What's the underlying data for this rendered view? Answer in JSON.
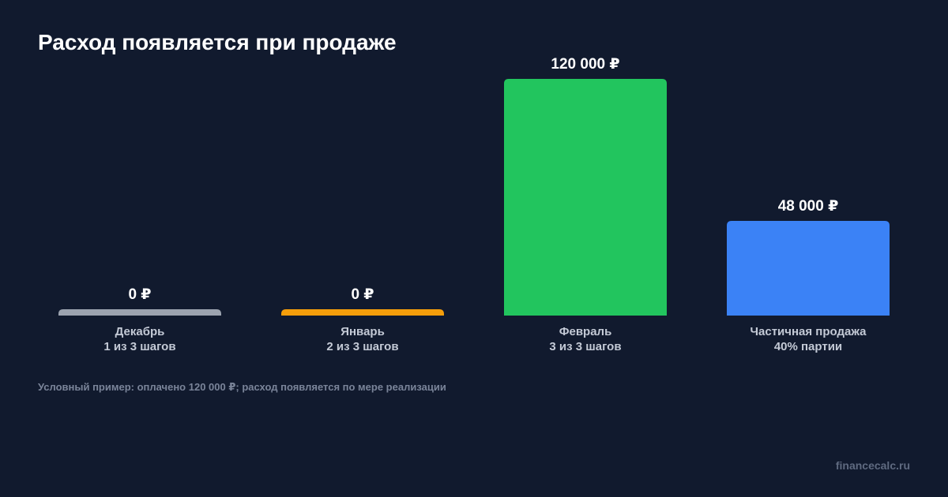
{
  "title": "Расход появляется при продаже",
  "note": "Условный пример: оплачено 120 000 ₽; расход появляется по мере реализации",
  "source": "financecalc.ru",
  "colors": {
    "background": "#111a2e",
    "december": "#9ca3af",
    "january": "#f59e0b",
    "february": "#22c55e",
    "partial": "#3b82f6"
  },
  "chart_data": {
    "type": "bar",
    "title": "Расход появляется при продаже",
    "ylim": [
      0,
      120000
    ],
    "grid": false,
    "categories": [
      "Декабрь\n1 из 3 шагов",
      "Январь\n2 из 3 шагов",
      "Февраль\n3 из 3 шагов",
      "Частичная продажа\n40% партии"
    ],
    "bars": [
      {
        "label_line1": "Декабрь",
        "label_line2": "1 из 3 шагов",
        "value": 0,
        "value_label": "0 ₽",
        "color": "#9ca3af"
      },
      {
        "label_line1": "Январь",
        "label_line2": "2 из 3 шагов",
        "value": 0,
        "value_label": "0 ₽",
        "color": "#f59e0b"
      },
      {
        "label_line1": "Февраль",
        "label_line2": "3 из 3 шагов",
        "value": 120000,
        "value_label": "120 000 ₽",
        "color": "#22c55e"
      },
      {
        "label_line1": "Частичная продажа",
        "label_line2": "40% партии",
        "value": 48000,
        "value_label": "48 000 ₽",
        "color": "#3b82f6"
      }
    ]
  }
}
